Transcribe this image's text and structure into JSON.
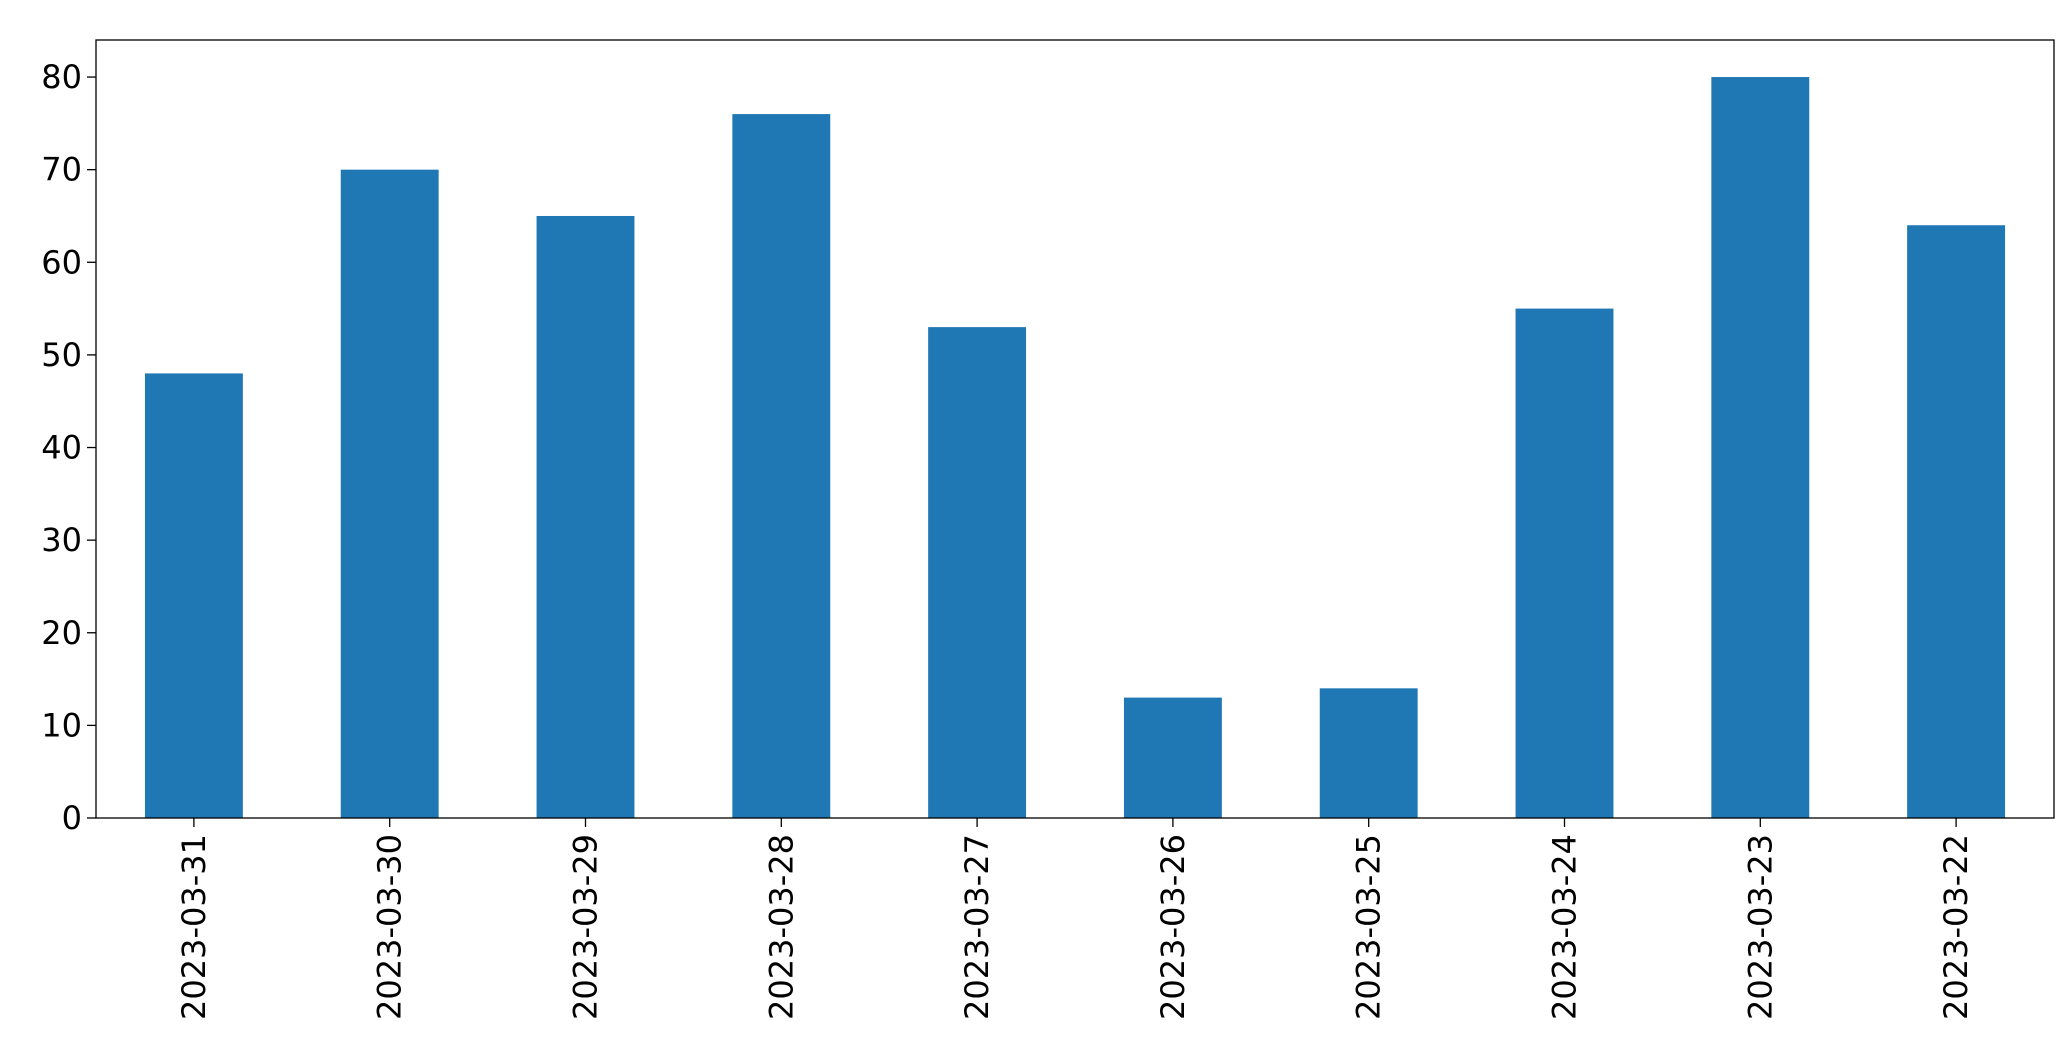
{
  "chart_data": {
    "type": "bar",
    "categories": [
      "2023-03-31",
      "2023-03-30",
      "2023-03-29",
      "2023-03-28",
      "2023-03-27",
      "2023-03-26",
      "2023-03-25",
      "2023-03-24",
      "2023-03-23",
      "2023-03-22"
    ],
    "values": [
      48,
      70,
      65,
      76,
      53,
      13,
      14,
      55,
      80,
      64
    ],
    "color": "#1f77b4",
    "ylim": [
      0,
      84
    ],
    "yticks": [
      0,
      10,
      20,
      30,
      40,
      50,
      60,
      70,
      80
    ],
    "grid": false
  }
}
